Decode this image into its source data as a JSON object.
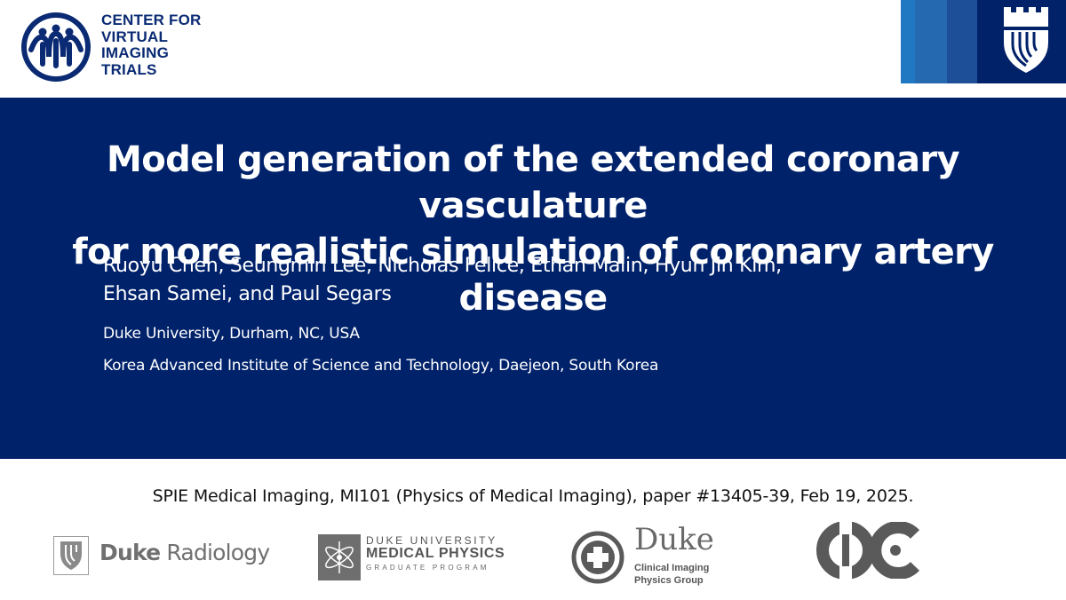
{
  "header": {
    "cvit_logo": {
      "icon": "cvit-people-icon",
      "lines": [
        "CENTER FOR",
        "VIRTUAL",
        "IMAGING",
        "TRIALS"
      ]
    },
    "duke_logo": {
      "icon": "duke-chapel-shield-icon"
    }
  },
  "title": {
    "line1": "Model generation of the extended coronary vasculature",
    "line2": "for more realistic simulation of coronary artery disease"
  },
  "authors": {
    "line1": "Ruoyu Chen, Seungmin Lee, Nicholas Felice, Ethan Malin, Hyun Jin Kim,",
    "line2": "Ehsan Samei, and Paul Segars"
  },
  "affiliations": [
    "Duke University, Durham, NC, USA",
    "Korea Advanced Institute of Science and Technology, Daejeon, South Korea"
  ],
  "conference": "SPIE Medical Imaging, MI101 (Physics of Medical Imaging), paper #13405-39, Feb 19, 2025.",
  "footer_logos": {
    "duke_radiology": {
      "bold": "Duke",
      "rest": " Radiology",
      "icon": "duke-shield-icon"
    },
    "medical_physics": {
      "line1": "DUKE UNIVERSITY",
      "line2": "MEDICAL PHYSICS",
      "line3": "GRADUATE PROGRAM",
      "icon": "medical-physics-atom-icon"
    },
    "clinical_imaging": {
      "title": "Duke",
      "line1": "Clinical Imaging",
      "line2": "Physics Group",
      "icon": "medical-cross-circle-icon"
    },
    "kaist_logo": {
      "icon": "kaist-emblem-icon"
    }
  },
  "colors": {
    "title_bg": "#00226b",
    "cvit_blue": "#0a2a73",
    "duke_navy": "#012169",
    "duke_mid": "#235ca6",
    "duke_light": "#2b7fc1",
    "footer_gray": "#707070"
  }
}
